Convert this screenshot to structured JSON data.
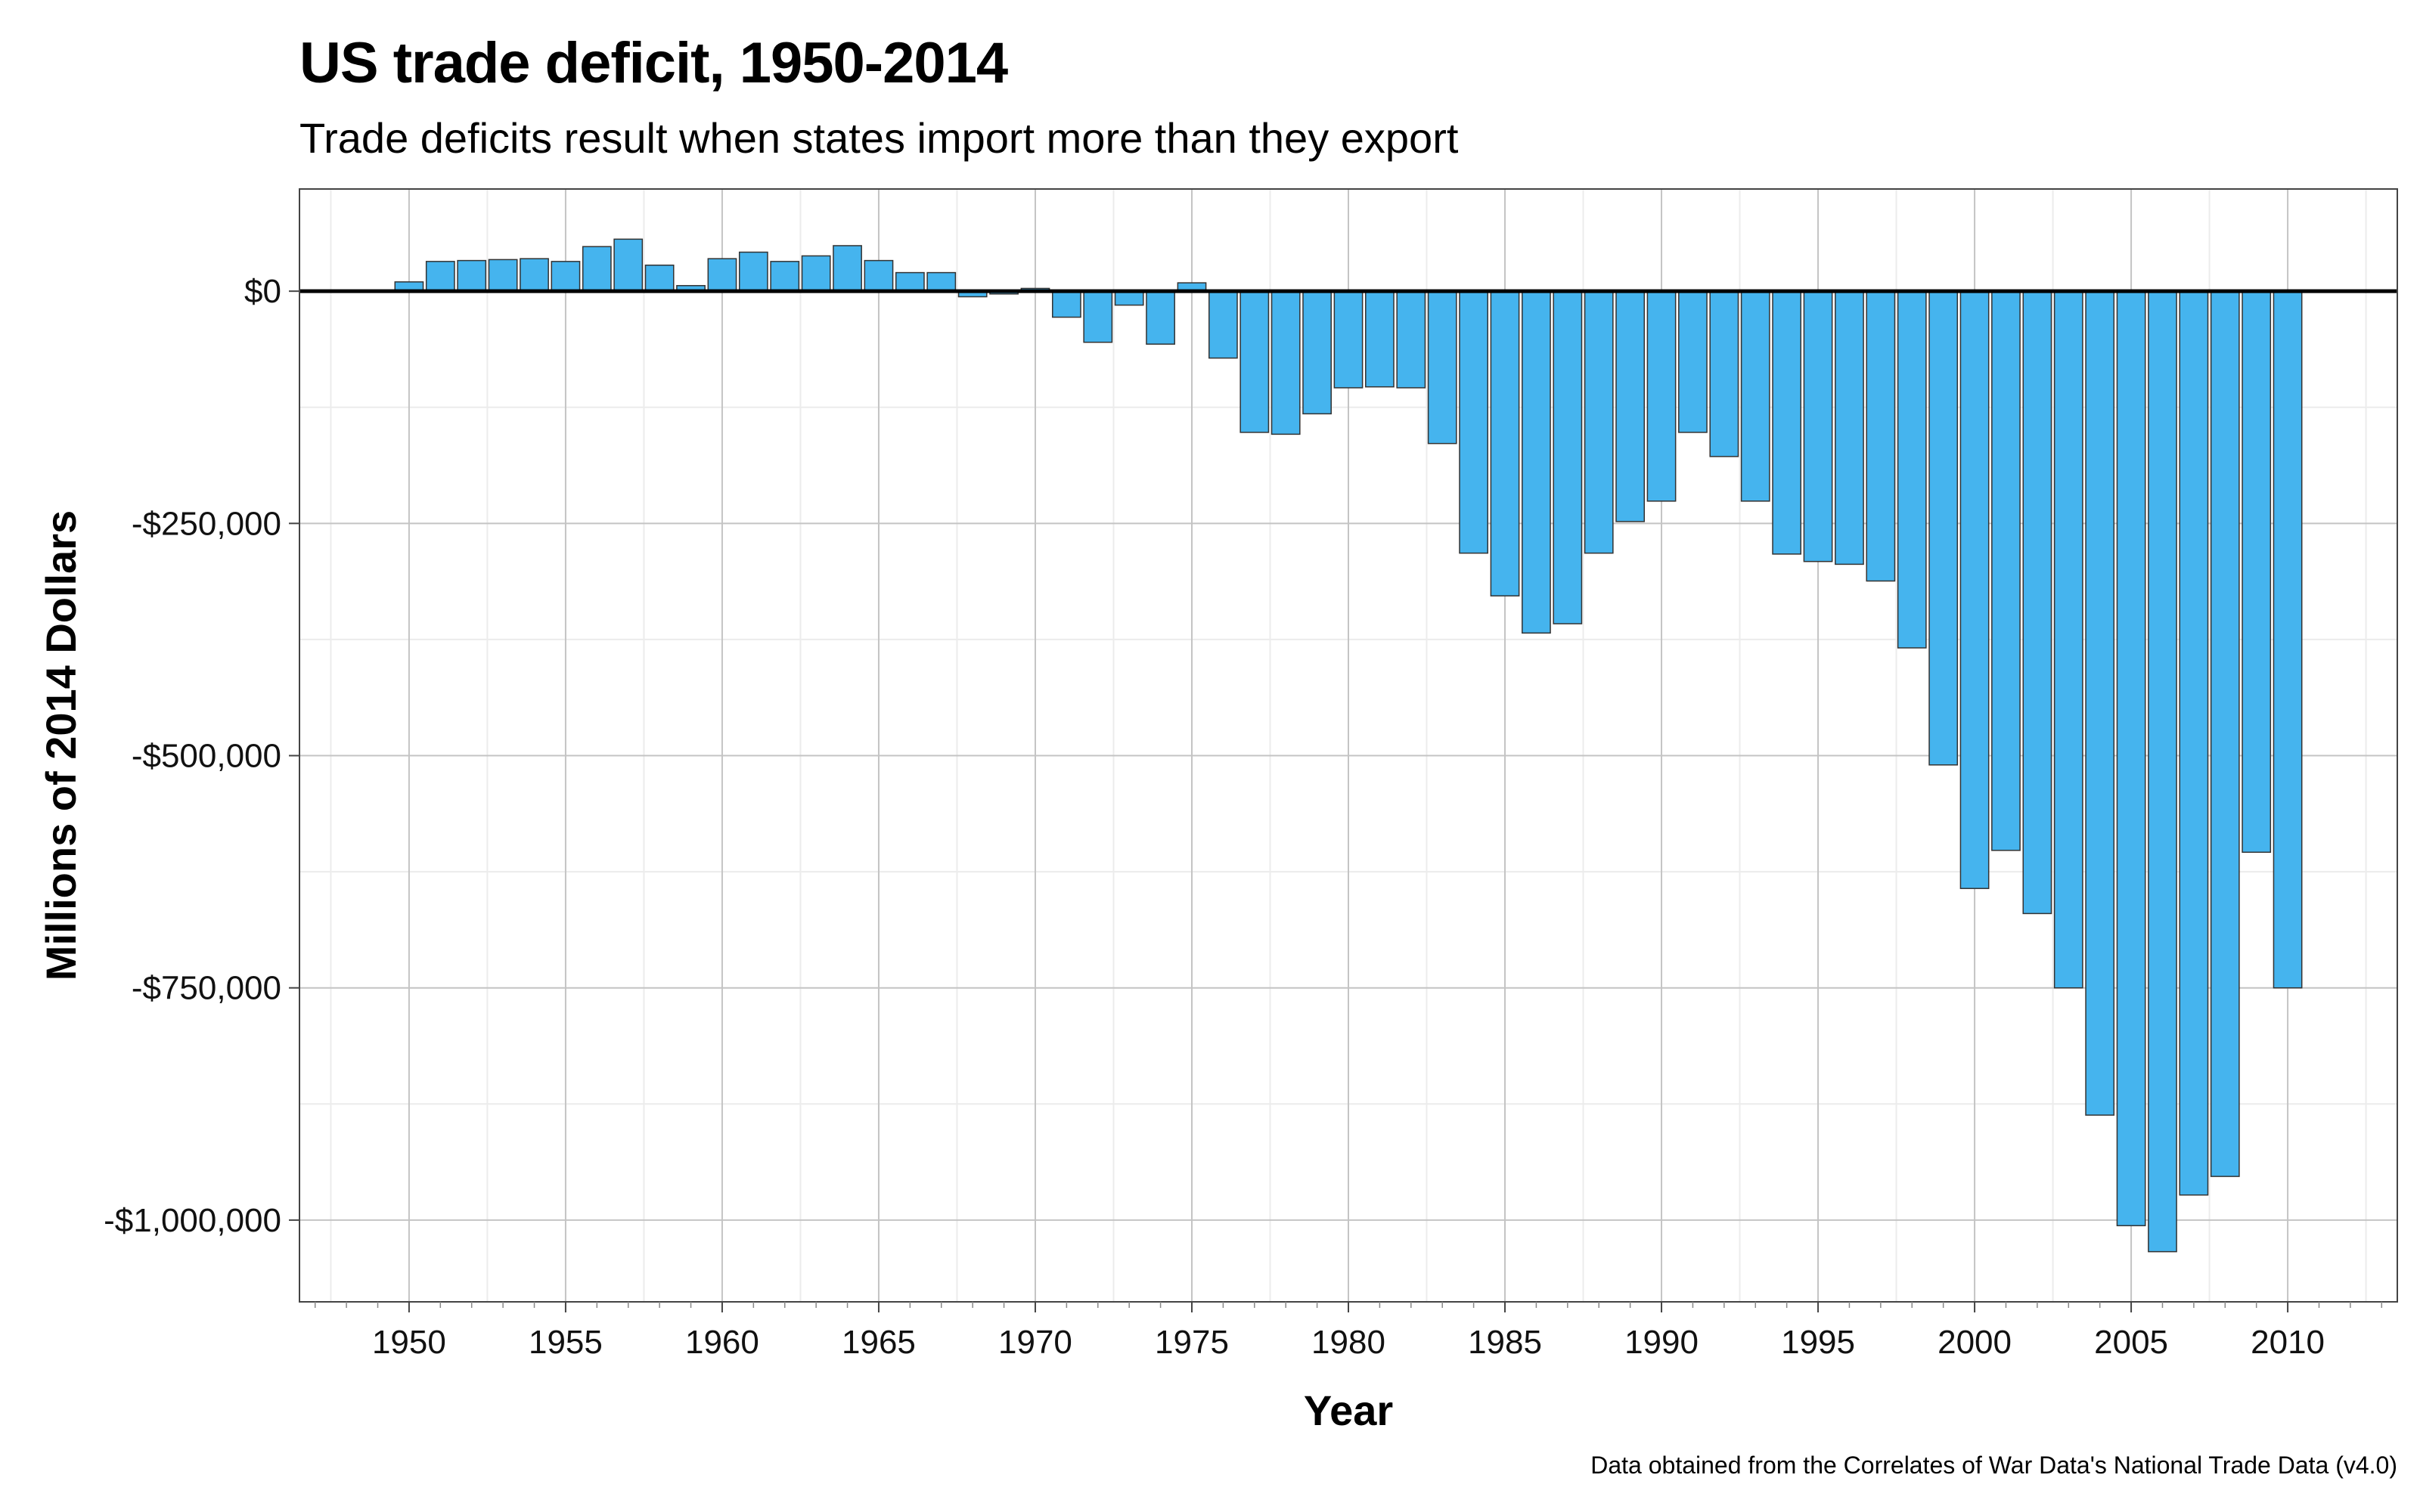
{
  "chart_data": {
    "type": "bar",
    "title": "US trade deficit, 1950-2014",
    "subtitle": "Trade deficits result when states import more than they export",
    "xlabel": "Year",
    "ylabel": "Millions of 2014 Dollars",
    "caption": "Data obtained from the Correlates of War Data's National Trade Data (v4.0)",
    "xlim": [
      1946.5,
      2013.5
    ],
    "ylim": [
      -1088000,
      110000
    ],
    "x_ticks": [
      1950,
      1955,
      1960,
      1965,
      1970,
      1975,
      1980,
      1985,
      1990,
      1995,
      2000,
      2005,
      2010
    ],
    "y_ticks": [
      0,
      -250000,
      -500000,
      -750000,
      -1000000
    ],
    "y_tick_labels": [
      "$0",
      "-$250,000",
      "-$500,000",
      "-$750,000",
      "-$1,000,000"
    ],
    "grid": true,
    "bar_color": "#45b4ee",
    "bar_edge_color": "#333333",
    "x": [
      1950,
      1951,
      1952,
      1953,
      1954,
      1955,
      1956,
      1957,
      1958,
      1959,
      1960,
      1961,
      1962,
      1963,
      1964,
      1965,
      1966,
      1967,
      1968,
      1969,
      1970,
      1971,
      1972,
      1973,
      1974,
      1975,
      1976,
      1977,
      1978,
      1979,
      1980,
      1981,
      1982,
      1983,
      1984,
      1985,
      1986,
      1987,
      1988,
      1989,
      1990,
      1991,
      1992,
      1993,
      1994,
      1995,
      1996,
      1997,
      1998,
      1999,
      2000,
      2001,
      2002,
      2003,
      2004,
      2005,
      2006,
      2007,
      2008,
      2009,
      2010
    ],
    "values": [
      10000,
      32000,
      33000,
      34000,
      35000,
      32000,
      48000,
      56000,
      28000,
      6000,
      35000,
      42000,
      32000,
      38000,
      49000,
      33000,
      20000,
      20000,
      -6000,
      -3000,
      3000,
      -28000,
      -55000,
      -15000,
      -57000,
      9000,
      -72000,
      -152000,
      -154000,
      -132000,
      -104000,
      -103000,
      -104000,
      -164000,
      -282000,
      -328000,
      -368000,
      -358000,
      -282000,
      -248000,
      -226000,
      -152000,
      -178000,
      -226000,
      -283000,
      -291000,
      -294000,
      -312000,
      -384000,
      -510000,
      -643000,
      -602000,
      -670000,
      -750000,
      -887000,
      -1006000,
      -1034000,
      -973000,
      -953000,
      -604000,
      -750000
    ]
  }
}
